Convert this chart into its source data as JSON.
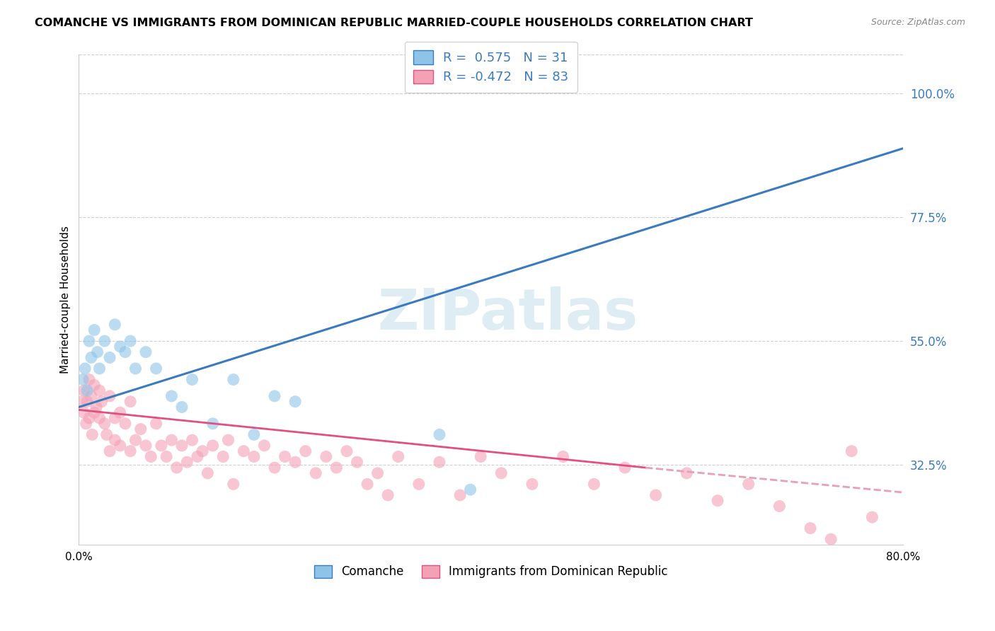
{
  "title": "COMANCHE VS IMMIGRANTS FROM DOMINICAN REPUBLIC MARRIED-COUPLE HOUSEHOLDS CORRELATION CHART",
  "source": "Source: ZipAtlas.com",
  "ylabel": "Married-couple Households",
  "ylabel_ticks": [
    32.5,
    55.0,
    77.5,
    100.0
  ],
  "xlim": [
    0.0,
    80.0
  ],
  "ylim": [
    18.0,
    107.0
  ],
  "watermark": "ZIPatlas",
  "blue_color": "#8ec4e8",
  "pink_color": "#f4a0b5",
  "blue_line_color": "#3a7bbf",
  "pink_line_color": "#e05080",
  "pink_line_dash_color": "#e8a0b8",
  "comanche_label": "Comanche",
  "dr_label": "Immigrants from Dominican Republic",
  "blue_line_x0": 0.0,
  "blue_line_y0": 43.0,
  "blue_line_x1": 80.0,
  "blue_line_y1": 90.0,
  "pink_solid_x0": 0.0,
  "pink_solid_y0": 42.5,
  "pink_solid_x1": 55.0,
  "pink_solid_y1": 32.0,
  "pink_dash_x0": 55.0,
  "pink_dash_y0": 32.0,
  "pink_dash_x1": 80.0,
  "pink_dash_y1": 27.5,
  "blue_scatter_x": [
    0.4,
    0.6,
    0.8,
    1.0,
    1.2,
    1.5,
    1.8,
    2.0,
    2.5,
    3.0,
    3.5,
    4.0,
    4.5,
    5.0,
    5.5,
    6.5,
    7.5,
    9.0,
    10.0,
    11.0,
    13.0,
    15.0,
    17.0,
    19.0,
    21.0,
    35.0,
    38.0
  ],
  "blue_scatter_y": [
    48.0,
    50.0,
    46.0,
    55.0,
    52.0,
    57.0,
    53.0,
    50.0,
    55.0,
    52.0,
    58.0,
    54.0,
    53.0,
    55.0,
    50.0,
    53.0,
    50.0,
    45.0,
    43.0,
    48.0,
    40.0,
    48.0,
    38.0,
    45.0,
    44.0,
    38.0,
    28.0
  ],
  "pink_scatter_x": [
    0.3,
    0.5,
    0.5,
    0.7,
    0.8,
    1.0,
    1.0,
    1.2,
    1.3,
    1.5,
    1.5,
    1.7,
    2.0,
    2.0,
    2.2,
    2.5,
    2.7,
    3.0,
    3.0,
    3.5,
    3.5,
    4.0,
    4.0,
    4.5,
    5.0,
    5.0,
    5.5,
    6.0,
    6.5,
    7.0,
    7.5,
    8.0,
    8.5,
    9.0,
    9.5,
    10.0,
    10.5,
    11.0,
    11.5,
    12.0,
    12.5,
    13.0,
    14.0,
    14.5,
    15.0,
    16.0,
    17.0,
    18.0,
    19.0,
    20.0,
    21.0,
    22.0,
    23.0,
    24.0,
    25.0,
    26.0,
    27.0,
    28.0,
    29.0,
    30.0,
    31.0,
    33.0,
    35.0,
    37.0,
    39.0,
    41.0,
    44.0,
    47.0,
    50.0,
    53.0,
    56.0,
    59.0,
    62.0,
    65.0,
    68.0,
    71.0,
    73.0,
    75.0,
    77.0
  ],
  "pink_scatter_y": [
    44.0,
    46.0,
    42.0,
    40.0,
    44.0,
    48.0,
    41.0,
    45.0,
    38.0,
    42.0,
    47.0,
    43.0,
    41.0,
    46.0,
    44.0,
    40.0,
    38.0,
    45.0,
    35.0,
    41.0,
    37.0,
    42.0,
    36.0,
    40.0,
    44.0,
    35.0,
    37.0,
    39.0,
    36.0,
    34.0,
    40.0,
    36.0,
    34.0,
    37.0,
    32.0,
    36.0,
    33.0,
    37.0,
    34.0,
    35.0,
    31.0,
    36.0,
    34.0,
    37.0,
    29.0,
    35.0,
    34.0,
    36.0,
    32.0,
    34.0,
    33.0,
    35.0,
    31.0,
    34.0,
    32.0,
    35.0,
    33.0,
    29.0,
    31.0,
    27.0,
    34.0,
    29.0,
    33.0,
    27.0,
    34.0,
    31.0,
    29.0,
    34.0,
    29.0,
    32.0,
    27.0,
    31.0,
    26.0,
    29.0,
    25.0,
    21.0,
    19.0,
    35.0,
    23.0
  ]
}
